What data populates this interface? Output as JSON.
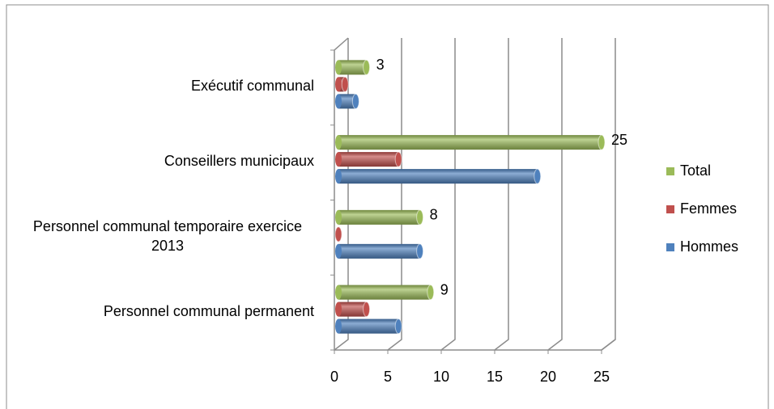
{
  "chart_data": {
    "type": "bar",
    "orientation": "horizontal",
    "categories": [
      "Exécutif communal",
      "Conseillers municipaux",
      "Personnel communal temporaire exercice 2013",
      "Personnel communal permanent"
    ],
    "series": [
      {
        "name": "Total",
        "color": "#9bbb59",
        "values": [
          3,
          25,
          8,
          9
        ],
        "show_labels": true
      },
      {
        "name": "Femmes",
        "color": "#c0504d",
        "values": [
          1,
          6,
          0,
          3
        ],
        "show_labels": false
      },
      {
        "name": "Hommes",
        "color": "#4f81bd",
        "values": [
          2,
          19,
          8,
          6
        ],
        "show_labels": false
      }
    ],
    "xlim": [
      0,
      25
    ],
    "xticks": [
      0,
      5,
      10,
      15,
      20,
      25
    ],
    "grid": true,
    "legend": "right"
  }
}
